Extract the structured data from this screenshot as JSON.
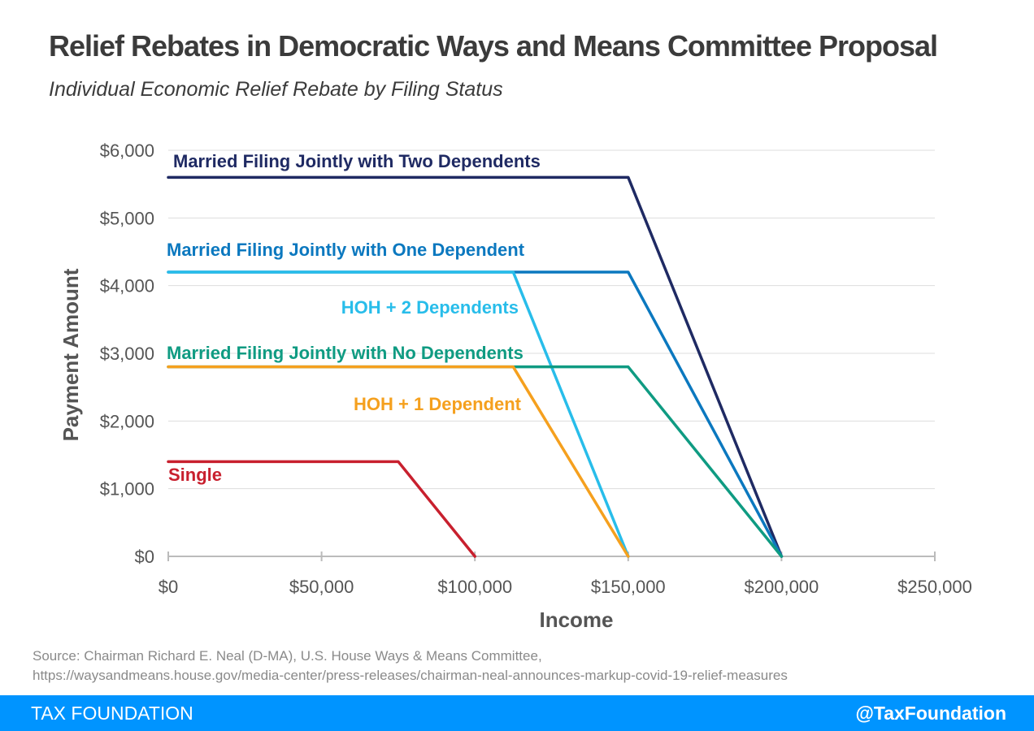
{
  "title": "Relief Rebates in Democratic Ways and Means Committee Proposal",
  "subtitle": "Individual Economic Relief Rebate by Filing Status",
  "source_line1": "Source: Chairman Richard E. Neal (D-MA), U.S. House Ways & Means Committee,",
  "source_line2": "https://waysandmeans.house.gov/media-center/press-releases/chairman-neal-announces-markup-covid-19-relief-measures",
  "footer": {
    "brand": "TAX FOUNDATION",
    "handle": "@TaxFoundation",
    "color": "#0094ff"
  },
  "chart_data": {
    "type": "line",
    "xlabel": "Income",
    "ylabel": "Payment Amount",
    "xlim": [
      0,
      250000
    ],
    "ylim": [
      0,
      6000
    ],
    "x_ticks": [
      0,
      50000,
      100000,
      150000,
      200000,
      250000
    ],
    "x_tick_labels": [
      "$0",
      "$50,000",
      "$100,000",
      "$150,000",
      "$200,000",
      "$250,000"
    ],
    "y_ticks": [
      0,
      1000,
      2000,
      3000,
      4000,
      5000,
      6000
    ],
    "y_tick_labels": [
      "$0",
      "$1,000",
      "$2,000",
      "$3,000",
      "$4,000",
      "$5,000",
      "$6,000"
    ],
    "grid": "horizontal",
    "series": [
      {
        "name": "Married Filing Jointly with Two Dependents",
        "color": "#1f2a63",
        "x": [
          0,
          150000,
          200000
        ],
        "y": [
          5600,
          5600,
          0
        ]
      },
      {
        "name": "Married Filing Jointly with One Dependent",
        "color": "#0b78bf",
        "x": [
          0,
          150000,
          200000
        ],
        "y": [
          4200,
          4200,
          0
        ]
      },
      {
        "name": "HOH + 2 Dependents",
        "color": "#28bdea",
        "x": [
          0,
          112500,
          150000
        ],
        "y": [
          4200,
          4200,
          0
        ]
      },
      {
        "name": "Married Filing Jointly with No Dependents",
        "color": "#0f9b82",
        "x": [
          0,
          150000,
          200000
        ],
        "y": [
          2800,
          2800,
          0
        ]
      },
      {
        "name": "HOH + 1 Dependent",
        "color": "#f5a01e",
        "x": [
          0,
          112500,
          150000
        ],
        "y": [
          2800,
          2800,
          0
        ]
      },
      {
        "name": "Single",
        "color": "#c8202e",
        "x": [
          0,
          75000,
          100000
        ],
        "y": [
          1400,
          1400,
          0
        ]
      }
    ]
  }
}
